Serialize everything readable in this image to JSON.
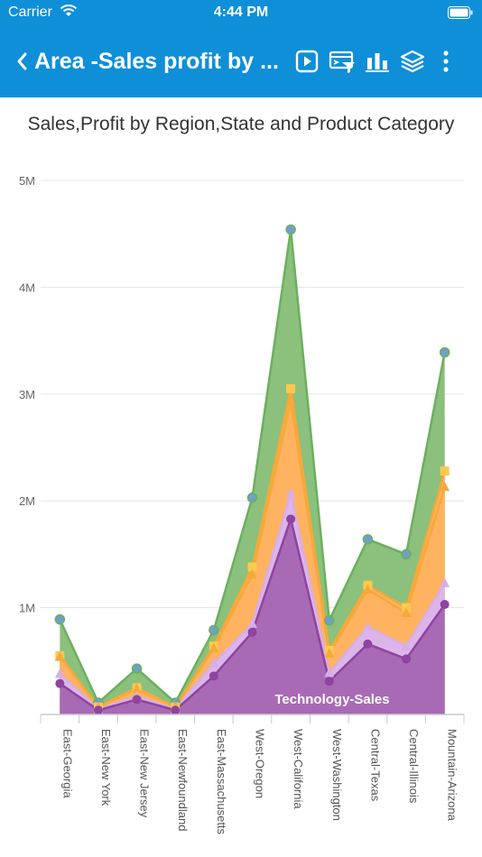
{
  "status_bar": {
    "carrier": "Carrier",
    "time": "4:44 PM"
  },
  "nav": {
    "title": "Area -Sales profit by ..."
  },
  "chart_data": {
    "type": "area",
    "stacked": false,
    "title": "Sales,Profit by Region,State and Product Category",
    "categories": [
      "East-Georgia",
      "East-New York",
      "East-New Jersey",
      "East-Newfoundland",
      "East-Massachusetts",
      "West-Oregon",
      "West-California",
      "West-Washington",
      "Central-Texas",
      "Central-Illinois",
      "Mountain-Arizona"
    ],
    "ylim": [
      0,
      5000000
    ],
    "yticks": [
      {
        "value": 1000000,
        "label": "1M"
      },
      {
        "value": 2000000,
        "label": "2M"
      },
      {
        "value": 3000000,
        "label": "3M"
      },
      {
        "value": 4000000,
        "label": "4M"
      },
      {
        "value": 5000000,
        "label": "5M"
      }
    ],
    "grid": true,
    "annotation": "Technology-Sales",
    "series": [
      {
        "color": "#6cb05e",
        "fill": "#8cc07d",
        "marker": "circle",
        "values": [
          890000,
          110000,
          430000,
          110000,
          790000,
          2030000,
          4540000,
          880000,
          1640000,
          1500000,
          3390000
        ]
      },
      {
        "color": "#f2a93b",
        "fill": "#ffb25f",
        "marker": "square",
        "values": [
          550000,
          70000,
          250000,
          70000,
          640000,
          1380000,
          3050000,
          600000,
          1210000,
          1000000,
          2280000
        ]
      },
      {
        "color": "#f7a93a",
        "fill": "#ffb25f",
        "marker": "triangle",
        "values": [
          540000,
          70000,
          240000,
          70000,
          620000,
          1310000,
          2930000,
          570000,
          1170000,
          950000,
          2130000
        ]
      },
      {
        "color": "#d7aee8",
        "fill": "#dcb6ea",
        "marker": "triangle",
        "values": [
          380000,
          50000,
          170000,
          50000,
          480000,
          850000,
          2070000,
          390000,
          820000,
          640000,
          1230000
        ]
      },
      {
        "color": "#8e44a0",
        "fill": "#a86ab4",
        "marker": "circle",
        "values": [
          290000,
          40000,
          140000,
          40000,
          360000,
          770000,
          1830000,
          310000,
          660000,
          520000,
          1030000
        ]
      }
    ]
  }
}
